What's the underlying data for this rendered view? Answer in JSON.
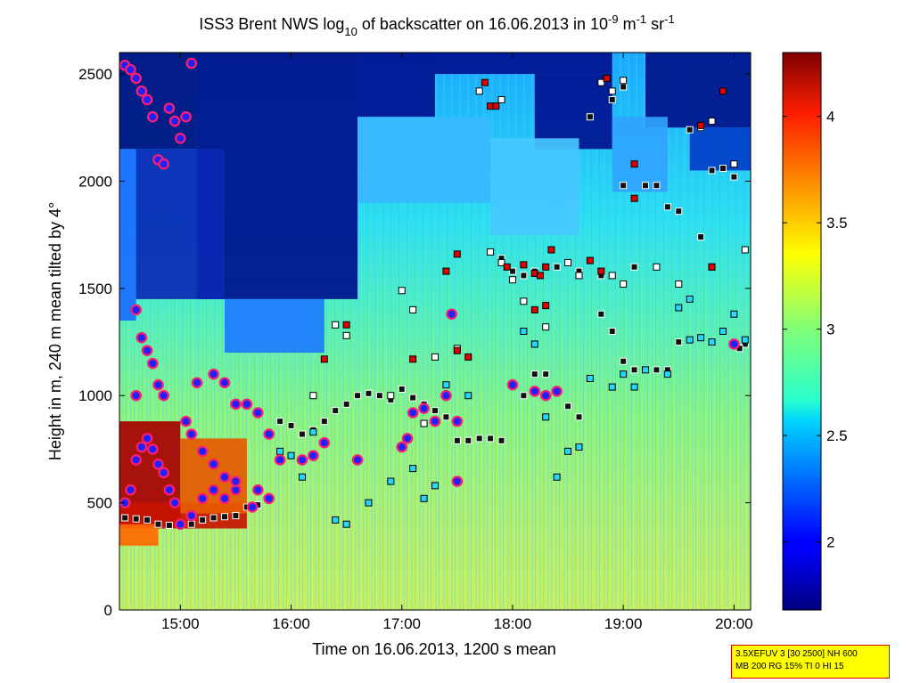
{
  "chart_data": {
    "type": "heatmap",
    "title_parts": {
      "prefix": "ISS3 Brent NWS log",
      "log_base": "10",
      "middle": " of backscatter on 16.06.2013 in 10",
      "exp1": "-9",
      "unit_m": " m",
      "exp2": "-1",
      "unit_sr": " sr",
      "exp3": "-1"
    },
    "xlabel": "Time on 16.06.2013, 1200 s mean",
    "ylabel": "Height in m, 240 m mean tilted by 4°",
    "x_range_hours": [
      14.45,
      20.15
    ],
    "xlim": [
      "14:27",
      "20:09"
    ],
    "ylim": [
      0,
      2600
    ],
    "x_ticks": [
      {
        "value": 15,
        "label": "15:00"
      },
      {
        "value": 16,
        "label": "16:00"
      },
      {
        "value": 17,
        "label": "17:00"
      },
      {
        "value": 18,
        "label": "18:00"
      },
      {
        "value": 19,
        "label": "19:00"
      },
      {
        "value": 20,
        "label": "20:00"
      }
    ],
    "y_ticks": [
      {
        "value": 0,
        "label": "0"
      },
      {
        "value": 500,
        "label": "500"
      },
      {
        "value": 1000,
        "label": "1000"
      },
      {
        "value": 1500,
        "label": "1500"
      },
      {
        "value": 2000,
        "label": "2000"
      },
      {
        "value": 2500,
        "label": "2500"
      }
    ],
    "colorbar": {
      "colormap": "jet",
      "range": [
        1.68,
        4.3
      ],
      "ticks": [
        {
          "value": 2,
          "label": "2"
        },
        {
          "value": 2.5,
          "label": "2.5"
        },
        {
          "value": 3,
          "label": "3"
        },
        {
          "value": 3.5,
          "label": "3.5"
        },
        {
          "value": 4,
          "label": "4"
        }
      ]
    },
    "series": [
      {
        "marker": "square-black",
        "points": [
          [
            14.5,
            430
          ],
          [
            14.6,
            425
          ],
          [
            14.7,
            420
          ],
          [
            14.8,
            400
          ],
          [
            14.9,
            395
          ],
          [
            15.0,
            395
          ],
          [
            15.1,
            400
          ],
          [
            15.2,
            420
          ],
          [
            15.3,
            430
          ],
          [
            15.4,
            435
          ],
          [
            15.5,
            440
          ],
          [
            15.6,
            480
          ],
          [
            15.7,
            490
          ],
          [
            15.9,
            880
          ],
          [
            16.0,
            860
          ],
          [
            16.1,
            820
          ],
          [
            16.2,
            840
          ],
          [
            16.3,
            880
          ],
          [
            16.4,
            930
          ],
          [
            16.5,
            960
          ],
          [
            16.6,
            1000
          ],
          [
            16.7,
            1010
          ],
          [
            16.8,
            1000
          ],
          [
            16.9,
            980
          ],
          [
            17.0,
            1030
          ],
          [
            17.1,
            990
          ],
          [
            17.2,
            960
          ],
          [
            17.3,
            930
          ],
          [
            17.4,
            900
          ],
          [
            17.5,
            790
          ],
          [
            17.6,
            790
          ],
          [
            17.7,
            800
          ],
          [
            17.8,
            800
          ],
          [
            17.9,
            790
          ],
          [
            18.1,
            1000
          ],
          [
            18.2,
            1100
          ],
          [
            18.3,
            1100
          ],
          [
            18.5,
            950
          ],
          [
            18.6,
            900
          ],
          [
            18.8,
            1380
          ],
          [
            18.9,
            1300
          ],
          [
            19.0,
            1160
          ],
          [
            19.1,
            1120
          ],
          [
            19.2,
            1120
          ],
          [
            19.3,
            1120
          ],
          [
            19.4,
            1120
          ],
          [
            19.5,
            1250
          ],
          [
            19.0,
            1980
          ],
          [
            19.2,
            1980
          ],
          [
            19.3,
            1980
          ],
          [
            19.4,
            1880
          ],
          [
            19.5,
            1860
          ],
          [
            19.7,
            1740
          ],
          [
            19.8,
            2050
          ],
          [
            19.9,
            2060
          ],
          [
            20.0,
            2020
          ],
          [
            18.7,
            2300
          ],
          [
            18.9,
            2380
          ],
          [
            19.0,
            2440
          ],
          [
            17.9,
            1640
          ],
          [
            18.0,
            1580
          ],
          [
            18.1,
            1560
          ],
          [
            18.2,
            1580
          ],
          [
            18.4,
            1600
          ],
          [
            18.6,
            1580
          ],
          [
            18.8,
            1560
          ],
          [
            19.1,
            1600
          ],
          [
            19.6,
            2240
          ],
          [
            19.7,
            2250
          ],
          [
            20.1,
            1240
          ],
          [
            20.05,
            1220
          ]
        ]
      },
      {
        "marker": "square-white",
        "points": [
          [
            16.4,
            1330
          ],
          [
            16.5,
            1280
          ],
          [
            17.0,
            1490
          ],
          [
            17.1,
            1400
          ],
          [
            17.3,
            1180
          ],
          [
            17.5,
            1220
          ],
          [
            17.8,
            1670
          ],
          [
            17.9,
            1620
          ],
          [
            18.0,
            1540
          ],
          [
            18.1,
            1440
          ],
          [
            18.3,
            1320
          ],
          [
            18.5,
            1620
          ],
          [
            18.6,
            1560
          ],
          [
            18.9,
            1560
          ],
          [
            19.0,
            1520
          ],
          [
            19.3,
            1600
          ],
          [
            19.5,
            1520
          ],
          [
            19.7,
            2250
          ],
          [
            19.8,
            2280
          ],
          [
            20.0,
            2080
          ],
          [
            19.8,
            1600
          ],
          [
            20.1,
            1680
          ],
          [
            18.8,
            2460
          ],
          [
            18.9,
            2420
          ],
          [
            19.0,
            2470
          ],
          [
            17.7,
            2420
          ],
          [
            17.9,
            2380
          ],
          [
            16.9,
            1000
          ],
          [
            17.2,
            870
          ],
          [
            16.2,
            1000
          ]
        ]
      },
      {
        "marker": "square-cyan",
        "points": [
          [
            15.9,
            740
          ],
          [
            16.0,
            720
          ],
          [
            16.1,
            620
          ],
          [
            16.2,
            830
          ],
          [
            16.3,
            780
          ],
          [
            16.4,
            420
          ],
          [
            16.5,
            400
          ],
          [
            16.7,
            500
          ],
          [
            16.9,
            600
          ],
          [
            17.1,
            660
          ],
          [
            17.2,
            520
          ],
          [
            17.3,
            580
          ],
          [
            17.4,
            1050
          ],
          [
            17.6,
            1000
          ],
          [
            18.1,
            1300
          ],
          [
            18.2,
            1240
          ],
          [
            18.3,
            900
          ],
          [
            18.4,
            620
          ],
          [
            18.5,
            740
          ],
          [
            18.6,
            760
          ],
          [
            18.7,
            1080
          ],
          [
            18.9,
            1040
          ],
          [
            19.0,
            1100
          ],
          [
            19.1,
            1040
          ],
          [
            19.2,
            1120
          ],
          [
            19.4,
            1100
          ],
          [
            19.6,
            1260
          ],
          [
            19.7,
            1270
          ],
          [
            19.8,
            1250
          ],
          [
            20.1,
            1260
          ],
          [
            19.5,
            1410
          ],
          [
            19.6,
            1450
          ],
          [
            19.9,
            1300
          ],
          [
            20.0,
            1380
          ]
        ]
      },
      {
        "marker": "square-red",
        "points": [
          [
            16.3,
            1170
          ],
          [
            16.5,
            1330
          ],
          [
            17.1,
            1170
          ],
          [
            17.5,
            1210
          ],
          [
            17.6,
            1180
          ],
          [
            17.75,
            2460
          ],
          [
            17.8,
            2350
          ],
          [
            17.85,
            2350
          ],
          [
            17.95,
            1600
          ],
          [
            18.1,
            1610
          ],
          [
            18.2,
            1570
          ],
          [
            18.25,
            1560
          ],
          [
            18.3,
            1600
          ],
          [
            18.35,
            1680
          ],
          [
            18.2,
            1400
          ],
          [
            18.3,
            1420
          ],
          [
            18.7,
            1630
          ],
          [
            18.8,
            1580
          ],
          [
            18.85,
            2480
          ],
          [
            19.1,
            2080
          ],
          [
            19.1,
            1920
          ],
          [
            19.7,
            2260
          ],
          [
            19.8,
            1600
          ],
          [
            19.9,
            2420
          ],
          [
            17.5,
            1660
          ],
          [
            17.4,
            1580
          ]
        ]
      },
      {
        "marker": "circle-blue-ring",
        "points": [
          [
            14.5,
            500
          ],
          [
            14.55,
            560
          ],
          [
            14.6,
            700
          ],
          [
            14.65,
            760
          ],
          [
            14.7,
            800
          ],
          [
            14.75,
            750
          ],
          [
            14.8,
            680
          ],
          [
            14.85,
            640
          ],
          [
            14.9,
            560
          ],
          [
            14.95,
            500
          ],
          [
            14.5,
            2540
          ],
          [
            14.55,
            2520
          ],
          [
            14.6,
            2480
          ],
          [
            14.65,
            2420
          ],
          [
            14.7,
            2380
          ],
          [
            14.75,
            2300
          ],
          [
            14.8,
            2100
          ],
          [
            14.85,
            2080
          ],
          [
            14.9,
            2340
          ],
          [
            14.95,
            2280
          ],
          [
            15.0,
            2200
          ],
          [
            15.05,
            2300
          ],
          [
            15.1,
            2550
          ],
          [
            14.6,
            1400
          ],
          [
            14.65,
            1270
          ],
          [
            14.7,
            1210
          ],
          [
            14.75,
            1150
          ],
          [
            14.8,
            1050
          ],
          [
            14.85,
            1000
          ],
          [
            14.6,
            1000
          ],
          [
            15.05,
            880
          ],
          [
            15.1,
            820
          ],
          [
            15.2,
            740
          ],
          [
            15.3,
            680
          ],
          [
            15.4,
            620
          ],
          [
            15.5,
            560
          ],
          [
            15.15,
            1060
          ],
          [
            15.3,
            1100
          ],
          [
            15.4,
            1060
          ],
          [
            15.5,
            960
          ],
          [
            15.6,
            960
          ],
          [
            15.7,
            920
          ],
          [
            15.8,
            820
          ],
          [
            15.9,
            700
          ],
          [
            16.1,
            700
          ],
          [
            16.2,
            720
          ],
          [
            16.3,
            780
          ],
          [
            16.6,
            700
          ],
          [
            17.0,
            760
          ],
          [
            17.05,
            800
          ],
          [
            17.1,
            920
          ],
          [
            17.2,
            940
          ],
          [
            17.3,
            880
          ],
          [
            17.4,
            1000
          ],
          [
            17.45,
            1380
          ],
          [
            17.5,
            880
          ],
          [
            17.5,
            600
          ],
          [
            18.0,
            1050
          ],
          [
            18.2,
            1020
          ],
          [
            18.3,
            1000
          ],
          [
            18.4,
            1020
          ],
          [
            20.0,
            1240
          ],
          [
            15.0,
            400
          ],
          [
            15.1,
            440
          ],
          [
            15.2,
            520
          ],
          [
            15.3,
            560
          ],
          [
            15.4,
            520
          ],
          [
            15.5,
            600
          ],
          [
            15.65,
            480
          ],
          [
            15.7,
            560
          ],
          [
            15.8,
            520
          ]
        ]
      }
    ]
  },
  "info_box": {
    "line1": "3.5XEFUV 3 [30 2500] NH 600",
    "line2": "MB 200 RG 15% TI 0 HI 15"
  }
}
